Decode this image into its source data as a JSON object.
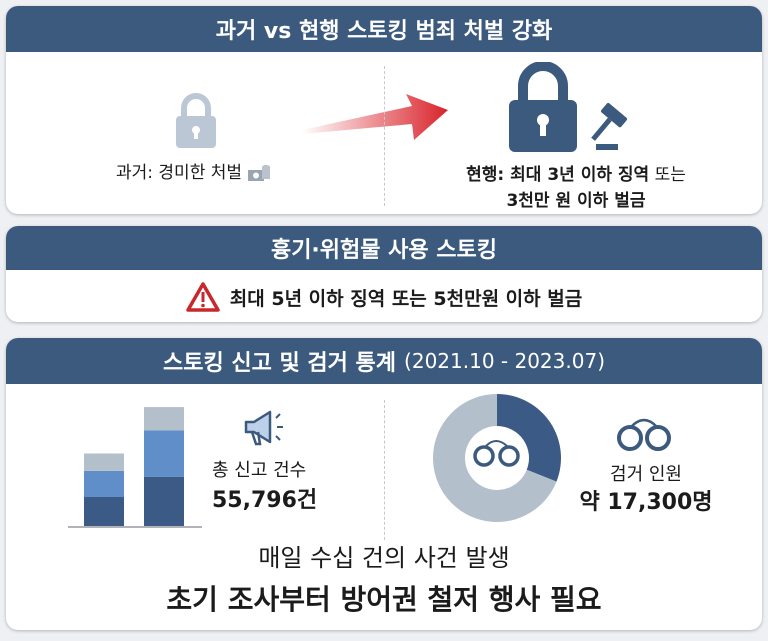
{
  "panel_1": {
    "title": "과거 vs 현행 스토킹 범죄 처벌 강화",
    "past_label": "과거: 경미한 처벌",
    "current_line1_bold": "현행: 최대 3년 이하 징역",
    "current_line1_tail": " 또는",
    "current_line2": "3천만 원 이하 벌금",
    "icons": [
      "lock-icon-faded",
      "money-icon",
      "arrow-right-icon",
      "lock-icon",
      "gavel-icon"
    ],
    "arrow_color": "#d9232b"
  },
  "panel_2": {
    "title": "흉기·위험물 사용 스토킹",
    "warning_text": "최대 5년 이하 징역 또는 5천만원 이하 벌금",
    "warning_color": "#c8282d"
  },
  "panel_3": {
    "title": "스토킹 신고 및 검거 통계",
    "period": "(2021.10 - 2023.07)",
    "reports_label": "총 신고 건수",
    "reports_value": "55,796건",
    "arrests_label": "검거 인원",
    "arrests_value": "약 17,300명",
    "footer_line1": "매일 수십 건의 사건 발생",
    "footer_line2": "초기 조사부터 방어권 철저 행사 필요",
    "colors": {
      "header": "#3c5a7e",
      "dark": "#3c5a86",
      "mid": "#5f8ec9",
      "light": "#b4bfcc"
    }
  },
  "chart_data": [
    {
      "type": "bar",
      "stacked": true,
      "categories": [
        "",
        ""
      ],
      "series": [
        {
          "values": [
            1,
            1.7
          ]
        },
        {
          "values": [
            0.9,
            1.6
          ]
        },
        {
          "values": [
            0.6,
            0.8
          ]
        }
      ]
    },
    {
      "type": "pie",
      "donut": true,
      "values": [
        17300,
        38496
      ]
    }
  ]
}
